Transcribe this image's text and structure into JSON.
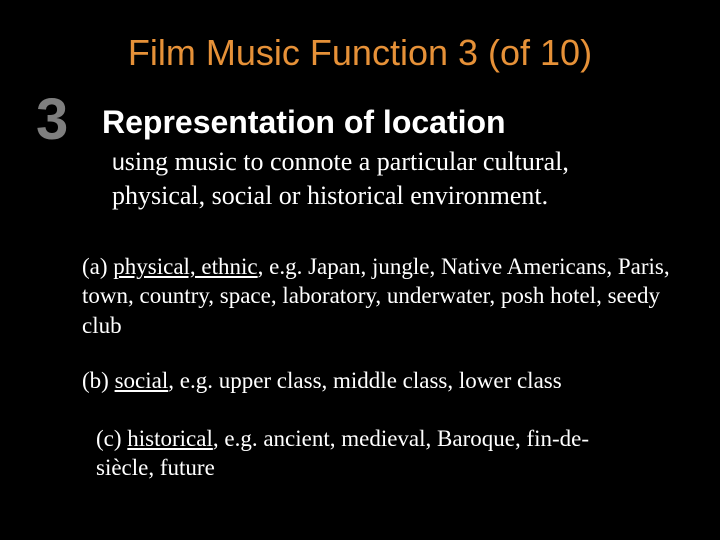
{
  "colors": {
    "background": "#000000",
    "title": "#e69138",
    "number": "#7f7f7f",
    "subtitle": "#ffffff",
    "body": "#ffffff"
  },
  "title": "Film Music Function 3 (of 10)",
  "number": "3",
  "subtitle": "Representation of location",
  "description_lead": "u",
  "description_rest": "sing music to connote a particular cultural, physical, social or historical environment.",
  "item_a": {
    "prefix": "(a) ",
    "ul": "physical, ethnic",
    "rest": ", e.g. Japan, jungle, Native Americans, Paris, town, country, space, laboratory, underwater, posh hotel, seedy club"
  },
  "item_b": {
    "prefix": "(b) ",
    "ul": "social",
    "rest": ", e.g. upper class, middle class, lower class"
  },
  "item_c": {
    "prefix": "(c) ",
    "ul": "historical",
    "rest": ", e.g. ancient, medieval, Baroque, fin-de-siècle, future"
  }
}
